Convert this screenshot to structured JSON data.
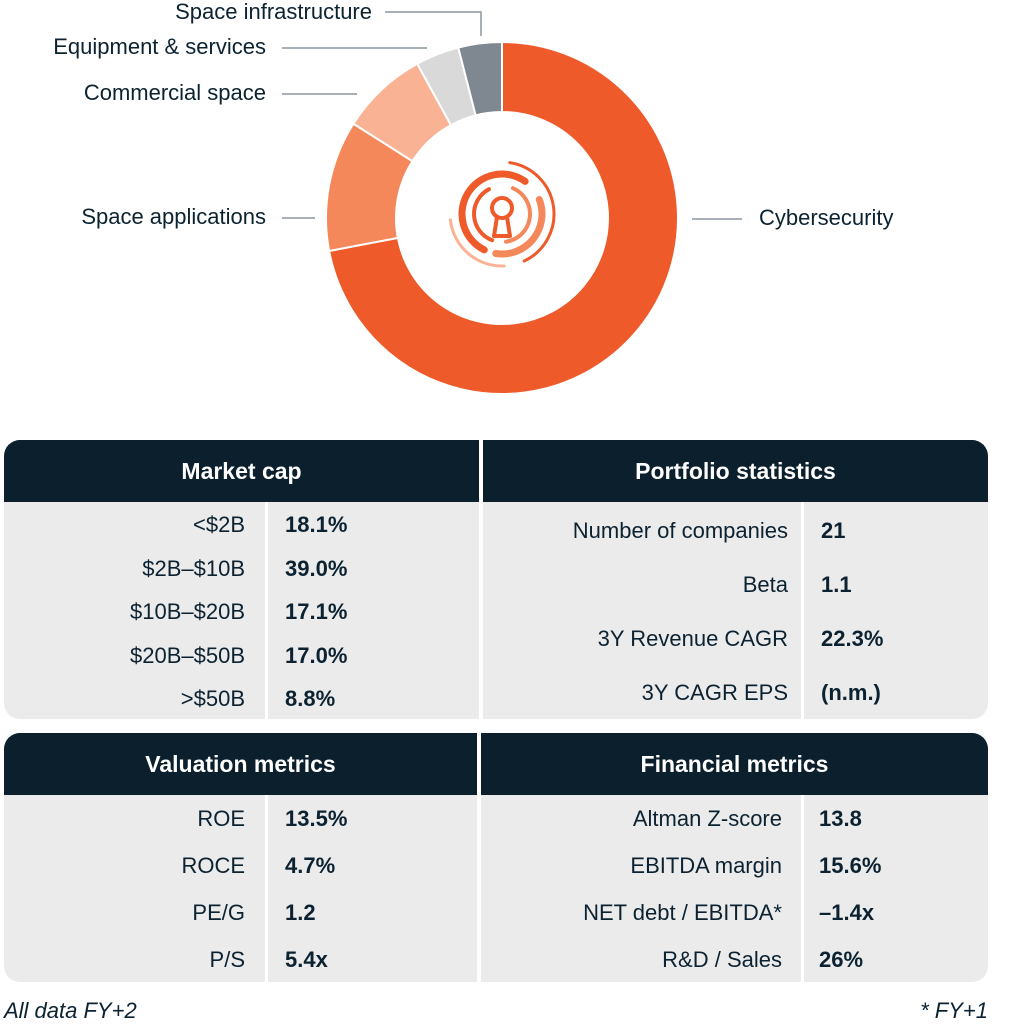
{
  "chart_data": {
    "type": "pie",
    "variant": "donut",
    "center_icon": "keyhole-shield-icon",
    "categories": [
      "Cybersecurity",
      "Space applications",
      "Commercial space",
      "Equipment & services",
      "Space infrastructure"
    ],
    "values": [
      72,
      12,
      8,
      4,
      4
    ],
    "colors": [
      "#ef5a2a",
      "#f5885a",
      "#f9b394",
      "#d9d9d9",
      "#7f8790"
    ],
    "legend": "callout labels"
  },
  "tables": {
    "market_cap": {
      "title": "Market cap",
      "rows": [
        {
          "label": "<$2B",
          "value": "18.1%"
        },
        {
          "label": "$2B–$10B",
          "value": "39.0%"
        },
        {
          "label": "$10B–$20B",
          "value": "17.1%"
        },
        {
          "label": "$20B–$50B",
          "value": "17.0%"
        },
        {
          "label": ">$50B",
          "value": "8.8%"
        }
      ]
    },
    "portfolio_statistics": {
      "title": "Portfolio statistics",
      "rows": [
        {
          "label": "Number of companies",
          "value": "21"
        },
        {
          "label": "Beta",
          "value": "1.1"
        },
        {
          "label": "3Y Revenue CAGR",
          "value": "22.3%"
        },
        {
          "label": "3Y CAGR EPS",
          "value": "(n.m.)"
        }
      ]
    },
    "valuation_metrics": {
      "title": "Valuation metrics",
      "rows": [
        {
          "label": "ROE",
          "value": "13.5%"
        },
        {
          "label": "ROCE",
          "value": "4.7%"
        },
        {
          "label": "PE/G",
          "value": "1.2"
        },
        {
          "label": "P/S",
          "value": "5.4x"
        }
      ]
    },
    "financial_metrics": {
      "title": "Financial metrics",
      "rows": [
        {
          "label": "Altman Z-score",
          "value": "13.8"
        },
        {
          "label": "EBITDA margin",
          "value": "15.6%"
        },
        {
          "label": "NET debt / EBITDA*",
          "value": "–1.4x"
        },
        {
          "label": "R&D / Sales",
          "value": "26%"
        }
      ]
    }
  },
  "footnotes": {
    "left": "All data FY+2",
    "right": "* FY+1"
  }
}
